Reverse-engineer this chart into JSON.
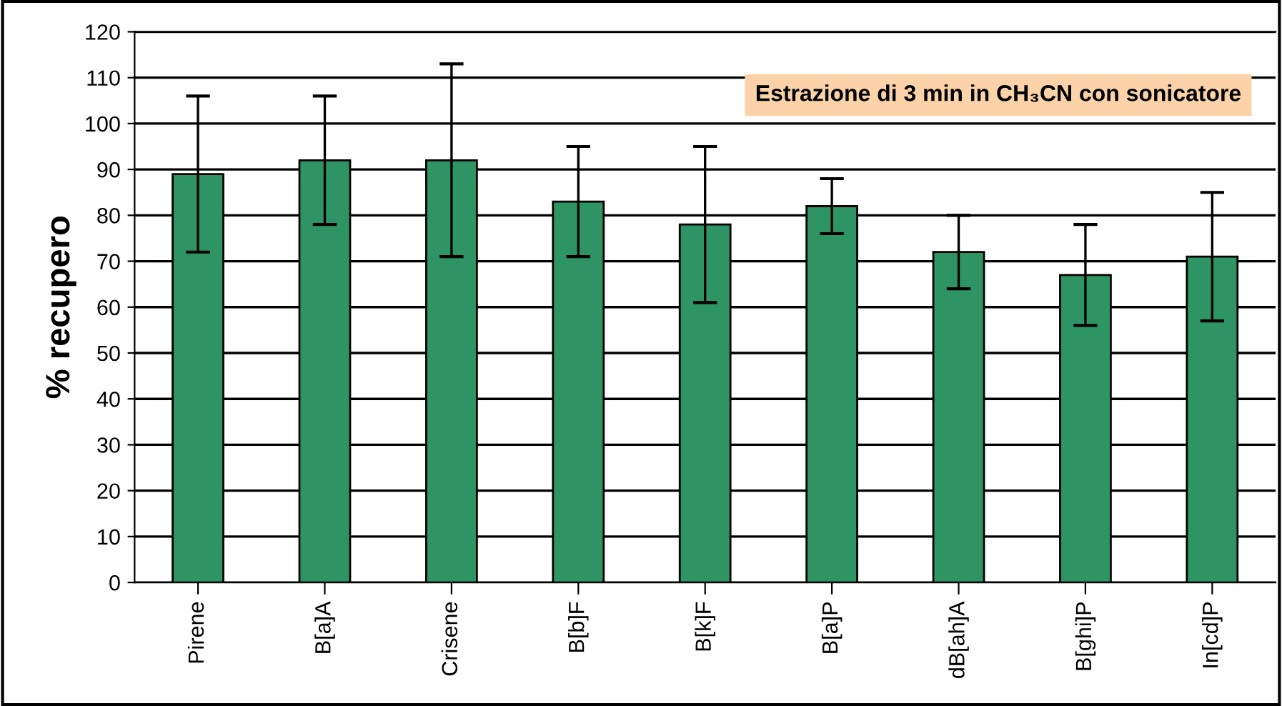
{
  "chart_data": {
    "type": "bar",
    "title": "Estrazione di 3 min in CH₃CN con sonicatore",
    "ylabel": "% recupero",
    "categories": [
      "Pirene",
      "B[a]A",
      "Crisene",
      "B[b]F",
      "B[k]F",
      "B[a]P",
      "dB[ah]A",
      "B[ghi]P",
      "In[cd]P"
    ],
    "values": [
      89,
      92,
      92,
      83,
      78,
      82,
      72,
      67,
      71
    ],
    "errors": [
      17,
      14,
      21,
      12,
      17,
      6,
      8,
      11,
      14
    ],
    "color": "#2e9463",
    "ylim": [
      0,
      120
    ],
    "yticks": [
      0,
      10,
      20,
      30,
      40,
      50,
      60,
      70,
      80,
      90,
      100,
      110,
      120
    ],
    "grid": "y"
  }
}
